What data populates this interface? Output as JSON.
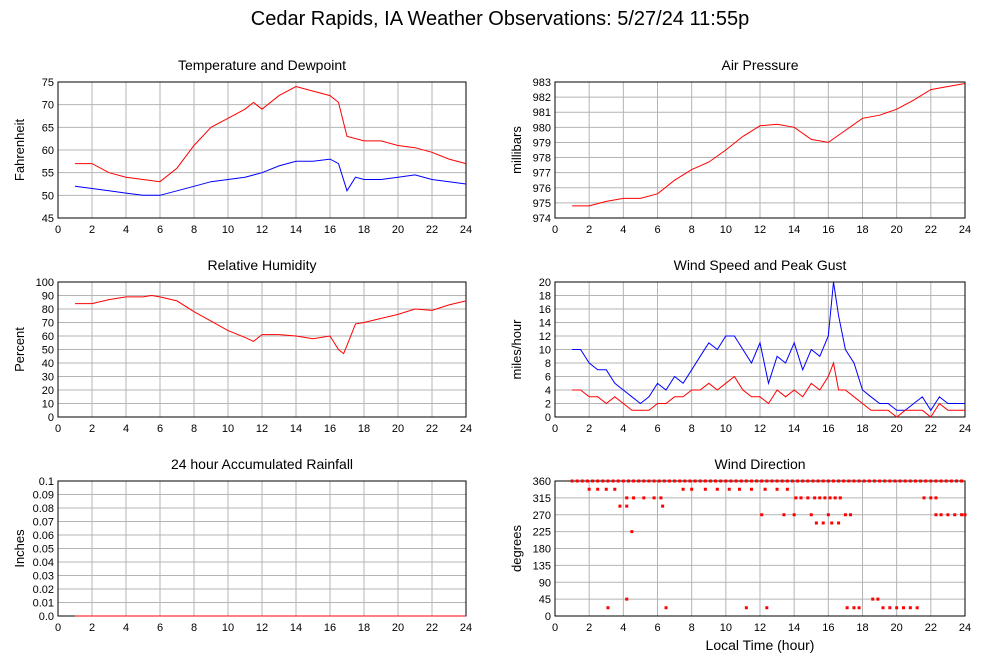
{
  "page": {
    "title": "Cedar Rapids, IA Weather Observations: 5/27/24 11:55p"
  },
  "chart_data": [
    {
      "id": "temp",
      "type": "line",
      "title": "Temperature and Dewpoint",
      "ylabel": "Fahrenheit",
      "xlabel": "",
      "xlim": [
        0,
        24
      ],
      "ylim": [
        45,
        75
      ],
      "yticks": [
        45,
        50,
        55,
        60,
        65,
        70,
        75
      ],
      "xticks": [
        0,
        2,
        4,
        6,
        8,
        10,
        12,
        14,
        16,
        18,
        20,
        22,
        24
      ],
      "grid": true,
      "series": [
        {
          "color": "#ff0000",
          "x": [
            1,
            2,
            3,
            4,
            5,
            6,
            7,
            8,
            9,
            10,
            11,
            11.5,
            12,
            13,
            14,
            15,
            16,
            16.5,
            17,
            18,
            19,
            20,
            21,
            22,
            23,
            24
          ],
          "values": [
            57,
            57,
            55,
            54,
            53.5,
            53,
            56,
            61,
            65,
            67,
            69,
            70.5,
            69,
            72,
            74,
            73,
            72,
            70.5,
            63,
            62,
            62,
            61,
            60.5,
            59.5,
            58,
            57
          ]
        },
        {
          "color": "#0000ff",
          "x": [
            1,
            2,
            3,
            4,
            5,
            6,
            7,
            8,
            9,
            10,
            11,
            12,
            13,
            14,
            15,
            16,
            16.5,
            17,
            17.5,
            18,
            19,
            20,
            21,
            22,
            23,
            24
          ],
          "values": [
            52,
            51.5,
            51,
            50.5,
            50,
            50,
            51,
            52,
            53,
            53.5,
            54,
            55,
            56.5,
            57.5,
            57.5,
            58,
            57,
            51,
            54,
            53.5,
            53.5,
            54,
            54.5,
            53.5,
            53,
            52.5
          ]
        }
      ]
    },
    {
      "id": "pressure",
      "type": "line",
      "title": "Air Pressure",
      "ylabel": "millibars",
      "xlabel": "",
      "xlim": [
        0,
        24
      ],
      "ylim": [
        974,
        983
      ],
      "yticks": [
        974,
        975,
        976,
        977,
        978,
        979,
        980,
        981,
        982,
        983
      ],
      "xticks": [
        0,
        2,
        4,
        6,
        8,
        10,
        12,
        14,
        16,
        18,
        20,
        22,
        24
      ],
      "grid": true,
      "series": [
        {
          "color": "#ff0000",
          "x": [
            1,
            2,
            3,
            4,
            5,
            6,
            7,
            8,
            9,
            10,
            11,
            12,
            13,
            14,
            15,
            16,
            17,
            18,
            19,
            20,
            21,
            22,
            23,
            24
          ],
          "values": [
            974.8,
            974.8,
            975.1,
            975.3,
            975.3,
            975.6,
            976.5,
            977.2,
            977.7,
            978.5,
            979.4,
            980.1,
            980.2,
            980.0,
            979.2,
            979.0,
            979.8,
            980.6,
            980.8,
            981.2,
            981.8,
            982.5,
            982.7,
            982.9
          ]
        }
      ]
    },
    {
      "id": "humidity",
      "type": "line",
      "title": "Relative Humidity",
      "ylabel": "Percent",
      "xlabel": "",
      "xlim": [
        0,
        24
      ],
      "ylim": [
        0,
        100
      ],
      "yticks": [
        0,
        10,
        20,
        30,
        40,
        50,
        60,
        70,
        80,
        90,
        100
      ],
      "xticks": [
        0,
        2,
        4,
        6,
        8,
        10,
        12,
        14,
        16,
        18,
        20,
        22,
        24
      ],
      "grid": true,
      "series": [
        {
          "color": "#ff0000",
          "x": [
            1,
            2,
            3,
            4,
            5,
            5.5,
            6,
            7,
            8,
            9,
            10,
            11,
            11.5,
            12,
            13,
            14,
            15,
            16,
            16.5,
            16.8,
            17,
            17.5,
            18,
            19,
            20,
            21,
            22,
            23,
            24
          ],
          "values": [
            84,
            84,
            87,
            89,
            89,
            90,
            89,
            86,
            78,
            71,
            64,
            59,
            56,
            61,
            61,
            60,
            58,
            60,
            50,
            47,
            53,
            69,
            70,
            73,
            76,
            80,
            79,
            83,
            86
          ]
        }
      ]
    },
    {
      "id": "wind",
      "type": "line",
      "title": "Wind Speed and Peak Gust",
      "ylabel": "miles/hour",
      "xlabel": "",
      "xlim": [
        0,
        24
      ],
      "ylim": [
        0,
        20
      ],
      "yticks": [
        0,
        2,
        4,
        6,
        8,
        10,
        12,
        14,
        16,
        18,
        20
      ],
      "xticks": [
        0,
        2,
        4,
        6,
        8,
        10,
        12,
        14,
        16,
        18,
        20,
        22,
        24
      ],
      "grid": true,
      "series": [
        {
          "color": "#0000ff",
          "x": [
            1,
            1.5,
            2,
            2.5,
            3,
            3.5,
            4,
            4.5,
            5,
            5.5,
            6,
            6.5,
            7,
            7.5,
            8,
            8.5,
            9,
            9.5,
            10,
            10.5,
            11,
            11.5,
            12,
            12.5,
            13,
            13.5,
            14,
            14.5,
            15,
            15.5,
            16,
            16.3,
            16.6,
            17,
            17.5,
            18,
            18.5,
            19,
            19.5,
            20,
            20.5,
            21,
            21.5,
            22,
            22.5,
            23,
            23.5,
            24
          ],
          "values": [
            10,
            10,
            8,
            7,
            7,
            5,
            4,
            3,
            2,
            3,
            5,
            4,
            6,
            5,
            7,
            9,
            11,
            10,
            12,
            12,
            10,
            8,
            11,
            5,
            9,
            8,
            11,
            7,
            10,
            9,
            12,
            20,
            15,
            10,
            8,
            4,
            3,
            2,
            2,
            1,
            1,
            2,
            3,
            1,
            3,
            2,
            2,
            2
          ]
        },
        {
          "color": "#ff0000",
          "x": [
            1,
            1.5,
            2,
            2.5,
            3,
            3.5,
            4,
            4.5,
            5,
            5.5,
            6,
            6.5,
            7,
            7.5,
            8,
            8.5,
            9,
            9.5,
            10,
            10.5,
            11,
            11.5,
            12,
            12.5,
            13,
            13.5,
            14,
            14.5,
            15,
            15.5,
            16,
            16.3,
            16.6,
            17,
            17.5,
            18,
            18.5,
            19,
            19.5,
            20,
            20.5,
            21,
            21.5,
            22,
            22.5,
            23,
            23.5,
            24
          ],
          "values": [
            4,
            4,
            3,
            3,
            2,
            3,
            2,
            1,
            1,
            1,
            2,
            2,
            3,
            3,
            4,
            4,
            5,
            4,
            5,
            6,
            4,
            3,
            3,
            2,
            4,
            3,
            4,
            3,
            5,
            4,
            6,
            8,
            4,
            4,
            3,
            2,
            1,
            1,
            1,
            0,
            1,
            1,
            1,
            0,
            2,
            1,
            1,
            1
          ]
        }
      ]
    },
    {
      "id": "rain",
      "type": "line",
      "title": "24 hour Accumulated Rainfall",
      "ylabel": "Inches",
      "xlabel": "",
      "xlim": [
        0,
        24
      ],
      "ylim": [
        0,
        0.1
      ],
      "yticks": [
        0.0,
        0.01,
        0.02,
        0.03,
        0.04,
        0.05,
        0.06,
        0.07,
        0.08,
        0.09,
        0.1
      ],
      "ytick_labels": [
        "0.0",
        "0.01",
        "0.02",
        "0.03",
        "0.04",
        "0.05",
        "0.06",
        "0.07",
        "0.08",
        "0.09",
        "0.1"
      ],
      "xticks": [
        0,
        2,
        4,
        6,
        8,
        10,
        12,
        14,
        16,
        18,
        20,
        22,
        24
      ],
      "grid": true,
      "series": [
        {
          "color": "#ff0000",
          "x": [
            1,
            24
          ],
          "values": [
            0,
            0
          ]
        }
      ]
    },
    {
      "id": "direction",
      "type": "scatter",
      "title": "Wind Direction",
      "ylabel": "degrees",
      "xlabel": "Local Time (hour)",
      "xlim": [
        0,
        24
      ],
      "ylim": [
        0,
        360
      ],
      "yticks": [
        0,
        45,
        90,
        135,
        180,
        225,
        270,
        315,
        360
      ],
      "xticks": [
        0,
        2,
        4,
        6,
        8,
        10,
        12,
        14,
        16,
        18,
        20,
        22,
        24
      ],
      "grid": true,
      "series": [
        {
          "color": "#ff0000",
          "x": [
            1.0,
            1.3,
            1.6,
            1.9,
            2.2,
            2.5,
            2.8,
            3.1,
            3.4,
            3.7,
            4.0,
            4.3,
            4.6,
            4.9,
            5.2,
            5.5,
            5.8,
            6.1,
            6.4,
            6.7,
            7.0,
            7.3,
            7.6,
            7.9,
            8.2,
            8.5,
            8.8,
            9.1,
            9.4,
            9.7,
            10.0,
            10.3,
            10.6,
            10.9,
            11.2,
            11.5,
            11.8,
            12.1,
            12.4,
            12.7,
            13.0,
            13.3,
            13.6,
            13.9,
            14.2,
            14.5,
            14.8,
            15.1,
            15.4,
            15.7,
            16.0,
            16.3,
            16.6,
            16.9,
            17.2,
            17.5,
            17.8,
            18.1,
            18.4,
            18.7,
            19.0,
            19.3,
            19.6,
            19.9,
            20.2,
            20.5,
            20.8,
            21.1,
            21.4,
            21.7,
            22.0,
            22.3,
            22.6,
            22.9,
            23.2,
            23.5,
            23.8,
            2.0,
            2.5,
            3.0,
            3.5,
            4.2,
            4.6,
            5.2,
            5.8,
            6.2,
            7.5,
            8.0,
            8.8,
            9.5,
            10.2,
            10.8,
            11.5,
            12.3,
            13.0,
            13.6,
            14.1,
            14.4,
            14.8,
            15.2,
            15.5,
            15.8,
            16.1,
            16.4,
            16.7,
            3.8,
            4.2,
            6.3,
            12.1,
            13.4,
            14.0,
            15.0,
            16.0,
            17.0,
            17.3,
            4.5,
            15.3,
            15.7,
            16.2,
            16.6,
            3.1,
            4.2,
            6.5,
            11.2,
            12.4,
            17.1,
            17.5,
            17.8,
            18.6,
            18.9,
            19.2,
            19.6,
            20.0,
            20.4,
            20.8,
            21.2,
            22.3,
            22.6,
            23.0,
            23.4,
            23.8,
            24.0,
            21.6,
            22.0,
            22.3
          ],
          "values": [
            360,
            360,
            360,
            360,
            360,
            360,
            360,
            360,
            360,
            360,
            360,
            360,
            360,
            360,
            360,
            360,
            360,
            360,
            360,
            360,
            360,
            360,
            360,
            360,
            360,
            360,
            360,
            360,
            360,
            360,
            360,
            360,
            360,
            360,
            360,
            360,
            360,
            360,
            360,
            360,
            360,
            360,
            360,
            360,
            360,
            360,
            360,
            360,
            360,
            360,
            360,
            360,
            360,
            360,
            360,
            360,
            360,
            360,
            360,
            360,
            360,
            360,
            360,
            360,
            360,
            360,
            360,
            360,
            360,
            360,
            360,
            360,
            360,
            360,
            360,
            360,
            360,
            338,
            338,
            338,
            338,
            315,
            315,
            315,
            315,
            315,
            338,
            338,
            338,
            338,
            338,
            338,
            338,
            338,
            338,
            338,
            315,
            315,
            315,
            315,
            315,
            315,
            315,
            315,
            315,
            293,
            293,
            293,
            270,
            270,
            270,
            270,
            270,
            270,
            270,
            225,
            248,
            248,
            248,
            248,
            22,
            45,
            22,
            22,
            22,
            22,
            22,
            22,
            45,
            45,
            22,
            22,
            22,
            22,
            22,
            22,
            270,
            270,
            270,
            270,
            270,
            270,
            315,
            315,
            315
          ]
        }
      ]
    }
  ]
}
